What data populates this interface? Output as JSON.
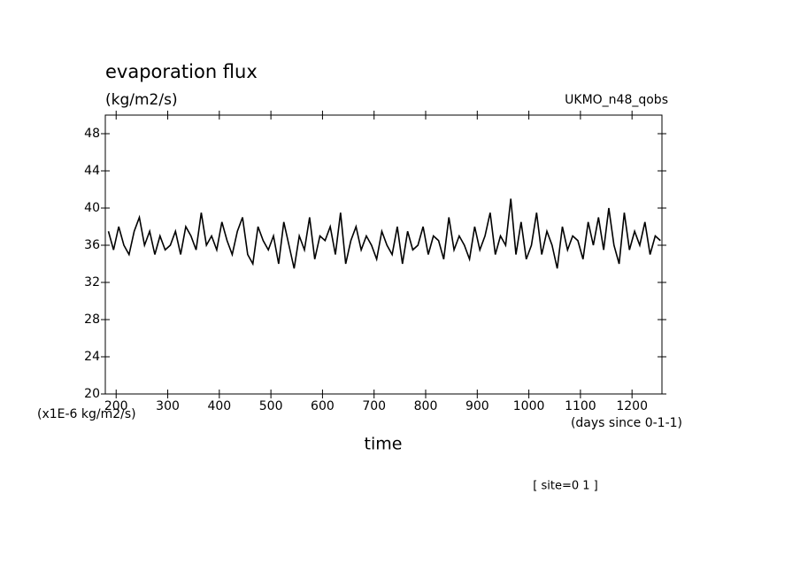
{
  "chart_data": {
    "type": "line",
    "title": "evaporation flux",
    "subtitle": "(kg/m2/s)",
    "dataset": "UKMO_n48_qobs",
    "y_units": "(x1E-6 kg/m2/s)",
    "x_units": "(days since 0-1-1)",
    "x_label": "time",
    "annotation": "[ site=0 1 ]",
    "xlim": [
      179,
      1258
    ],
    "ylim": [
      20,
      50
    ],
    "xticks": [
      200,
      300,
      400,
      500,
      600,
      700,
      800,
      900,
      1000,
      1100,
      1200
    ],
    "yticks": [
      20,
      24,
      28,
      32,
      36,
      40,
      44,
      48
    ],
    "x": [
      185,
      195,
      205,
      215,
      225,
      235,
      245,
      255,
      265,
      275,
      285,
      295,
      305,
      315,
      325,
      335,
      345,
      355,
      365,
      375,
      385,
      395,
      405,
      415,
      425,
      435,
      445,
      455,
      465,
      475,
      485,
      495,
      505,
      515,
      525,
      535,
      545,
      555,
      565,
      575,
      585,
      595,
      605,
      615,
      625,
      635,
      645,
      655,
      665,
      675,
      685,
      695,
      705,
      715,
      725,
      735,
      745,
      755,
      765,
      775,
      785,
      795,
      805,
      815,
      825,
      835,
      845,
      855,
      865,
      875,
      885,
      895,
      905,
      915,
      925,
      935,
      945,
      955,
      965,
      975,
      985,
      995,
      1005,
      1015,
      1025,
      1035,
      1045,
      1055,
      1065,
      1075,
      1085,
      1095,
      1105,
      1115,
      1125,
      1135,
      1145,
      1155,
      1165,
      1175,
      1185,
      1195,
      1205,
      1215,
      1225,
      1235,
      1245,
      1255
    ],
    "series": [
      {
        "color": "#000000",
        "values": [
          37.5,
          35.5,
          38,
          36,
          35,
          37.5,
          39,
          36,
          37.5,
          35,
          37,
          35.5,
          36,
          37.5,
          35,
          38,
          37,
          35.5,
          39.5,
          36,
          37,
          35.5,
          38.5,
          36.5,
          35,
          37.5,
          39,
          35,
          34,
          38,
          36.5,
          35.5,
          37,
          34,
          38.5,
          36,
          33.5,
          37,
          35.5,
          39,
          34.5,
          37,
          36.5,
          38,
          35,
          39.5,
          34,
          36.5,
          38,
          35.5,
          37,
          36,
          34.5,
          37.5,
          36,
          35,
          38,
          34,
          37.5,
          35.5,
          36,
          38,
          35,
          37,
          36.5,
          34.5,
          39,
          35.5,
          37,
          36,
          34.5,
          38,
          35.5,
          37,
          39.5,
          35,
          37,
          36,
          41,
          35,
          38.5,
          34.5,
          36,
          39.5,
          35,
          37.5,
          36,
          33.5,
          38,
          35.5,
          37,
          36.5,
          34.5,
          38.5,
          36,
          39,
          35.5,
          40,
          36,
          34,
          39.5,
          35.5,
          37.5,
          36,
          38.5,
          35,
          37,
          36.5
        ]
      }
    ]
  }
}
